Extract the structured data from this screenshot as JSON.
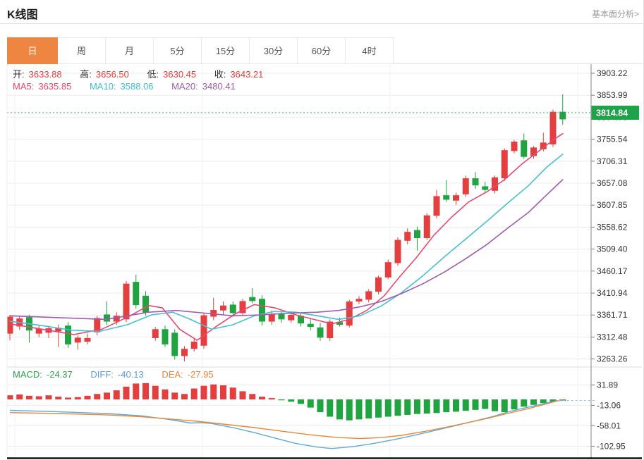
{
  "header": {
    "title": "K线图",
    "link": "基本面分析>"
  },
  "tabs": {
    "items": [
      "日",
      "周",
      "月",
      "5分",
      "15分",
      "30分",
      "60分",
      "4时"
    ],
    "active_index": 0
  },
  "info": {
    "open_label": "开:",
    "open_value": "3633.88",
    "high_label": "高:",
    "high_value": "3656.50",
    "low_label": "低:",
    "low_value": "3630.45",
    "close_label": "收:",
    "close_value": "3643.21",
    "ma5_label": "MA5:",
    "ma5_value": "3635.85",
    "ma10_label": "MA10:",
    "ma10_value": "3588.06",
    "ma20_label": "MA20:",
    "ma20_value": "3480.41"
  },
  "macd_info": {
    "macd_label": "MACD:",
    "macd_value": "-24.37",
    "diff_label": "DIFF:",
    "diff_value": "-40.13",
    "dea_label": "DEA:",
    "dea_value": "-27.95"
  },
  "colors": {
    "up": "#e43e3e",
    "down": "#1fa440",
    "accent_tab": "#ee8540",
    "ma5": "#e8486e",
    "ma10": "#45bfd6",
    "ma20": "#a05ab0",
    "diff_line": "#5aabdc",
    "dea_line": "#ef8632",
    "badge_bg": "#1fa24a",
    "dotted_line": "#2aa84c",
    "grid": "#ececec",
    "axis": "#9a9a9a"
  },
  "chart_data": [
    {
      "type": "candlestick",
      "panel": "main",
      "title": "K线图 日K",
      "y_ticks": [
        "3903.22",
        "3853.99",
        "3804.76",
        "3755.54",
        "3706.31",
        "3657.08",
        "3607.85",
        "3558.62",
        "3509.40",
        "3460.17",
        "3410.94",
        "3361.71",
        "3312.48",
        "3263.26"
      ],
      "y_range": [
        3263.26,
        3903.22
      ],
      "grid": true,
      "legend_position": "top-left-overlay",
      "current_price": 3814.84,
      "current_price_label": "3814.84",
      "candles_ohlc": [
        [
          3320,
          3362,
          3305,
          3358
        ],
        [
          3336,
          3360,
          3328,
          3354
        ],
        [
          3357,
          3362,
          3300,
          3327
        ],
        [
          3320,
          3340,
          3312,
          3331
        ],
        [
          3322,
          3338,
          3310,
          3332
        ],
        [
          3325,
          3340,
          3290,
          3333
        ],
        [
          3338,
          3346,
          3288,
          3296
        ],
        [
          3300,
          3316,
          3284,
          3311
        ],
        [
          3302,
          3320,
          3296,
          3310
        ],
        [
          3323,
          3360,
          3316,
          3355
        ],
        [
          3363,
          3392,
          3340,
          3347
        ],
        [
          3347,
          3368,
          3340,
          3360
        ],
        [
          3352,
          3438,
          3346,
          3432
        ],
        [
          3436,
          3452,
          3376,
          3384
        ],
        [
          3405,
          3415,
          3360,
          3367
        ],
        [
          3310,
          3335,
          3304,
          3330
        ],
        [
          3330,
          3338,
          3290,
          3296
        ],
        [
          3322,
          3330,
          3262,
          3270
        ],
        [
          3270,
          3292,
          3258,
          3286
        ],
        [
          3286,
          3308,
          3280,
          3302
        ],
        [
          3293,
          3366,
          3286,
          3361
        ],
        [
          3358,
          3400,
          3350,
          3373
        ],
        [
          3372,
          3392,
          3362,
          3383
        ],
        [
          3385,
          3392,
          3358,
          3366
        ],
        [
          3366,
          3398,
          3360,
          3393
        ],
        [
          3402,
          3422,
          3388,
          3393
        ],
        [
          3398,
          3406,
          3338,
          3347
        ],
        [
          3347,
          3372,
          3340,
          3364
        ],
        [
          3364,
          3370,
          3344,
          3352
        ],
        [
          3350,
          3368,
          3344,
          3362
        ],
        [
          3360,
          3366,
          3336,
          3343
        ],
        [
          3342,
          3354,
          3328,
          3335
        ],
        [
          3334,
          3344,
          3304,
          3311
        ],
        [
          3310,
          3352,
          3304,
          3347
        ],
        [
          3346,
          3356,
          3336,
          3340
        ],
        [
          3338,
          3396,
          3334,
          3392
        ],
        [
          3392,
          3404,
          3386,
          3398
        ],
        [
          3396,
          3420,
          3390,
          3415
        ],
        [
          3414,
          3450,
          3408,
          3446
        ],
        [
          3446,
          3486,
          3442,
          3480
        ],
        [
          3478,
          3536,
          3472,
          3530
        ],
        [
          3528,
          3556,
          3520,
          3548
        ],
        [
          3552,
          3560,
          3506,
          3534
        ],
        [
          3534,
          3590,
          3530,
          3585
        ],
        [
          3584,
          3642,
          3578,
          3628
        ],
        [
          3630,
          3664,
          3615,
          3620
        ],
        [
          3618,
          3636,
          3608,
          3630
        ],
        [
          3632,
          3674,
          3626,
          3668
        ],
        [
          3668,
          3682,
          3644,
          3652
        ],
        [
          3650,
          3660,
          3634,
          3642
        ],
        [
          3640,
          3674,
          3634,
          3670
        ],
        [
          3668,
          3735,
          3662,
          3731
        ],
        [
          3729,
          3754,
          3724,
          3750
        ],
        [
          3753,
          3768,
          3712,
          3716
        ],
        [
          3718,
          3740,
          3712,
          3737
        ],
        [
          3733,
          3770,
          3728,
          3748
        ],
        [
          3744,
          3822,
          3738,
          3817
        ],
        [
          3817,
          3856,
          3788,
          3800
        ]
      ],
      "ma_lines": [
        {
          "name": "MA5",
          "color": "#e8486e",
          "points": [
            [
              0,
              3342
            ],
            [
              3.3,
              3330
            ],
            [
              6.6,
              3318
            ],
            [
              9.5,
              3330
            ],
            [
              12.4,
              3360
            ],
            [
              14.3,
              3383
            ],
            [
              15.7,
              3378
            ],
            [
              17.5,
              3330
            ],
            [
              19.3,
              3305
            ],
            [
              21.2,
              3335
            ],
            [
              23.3,
              3365
            ],
            [
              25.2,
              3385
            ],
            [
              27.3,
              3378
            ],
            [
              29.5,
              3362
            ],
            [
              31.7,
              3350
            ],
            [
              33.2,
              3342
            ],
            [
              35,
              3352
            ],
            [
              36.8,
              3372
            ],
            [
              38.6,
              3405
            ],
            [
              40.1,
              3445
            ],
            [
              41.9,
              3490
            ],
            [
              43.7,
              3540
            ],
            [
              45.5,
              3580
            ],
            [
              47.3,
              3615
            ],
            [
              49.2,
              3638
            ],
            [
              51,
              3665
            ],
            [
              52.8,
              3700
            ],
            [
              54.6,
              3730
            ],
            [
              56.1,
              3755
            ],
            [
              57,
              3768
            ]
          ]
        },
        {
          "name": "MA10",
          "color": "#45bfd6",
          "points": [
            [
              0,
              3348
            ],
            [
              3.3,
              3338
            ],
            [
              6.3,
              3328
            ],
            [
              9.2,
              3325
            ],
            [
              12.1,
              3340
            ],
            [
              14.6,
              3362
            ],
            [
              16.8,
              3368
            ],
            [
              18.6,
              3352
            ],
            [
              20.8,
              3330
            ],
            [
              23,
              3340
            ],
            [
              25.2,
              3360
            ],
            [
              27.3,
              3370
            ],
            [
              29.5,
              3368
            ],
            [
              31.7,
              3360
            ],
            [
              33.9,
              3352
            ],
            [
              36.1,
              3360
            ],
            [
              38.3,
              3382
            ],
            [
              40.4,
              3412
            ],
            [
              42.6,
              3450
            ],
            [
              44.8,
              3492
            ],
            [
              47,
              3532
            ],
            [
              49.2,
              3572
            ],
            [
              51.3,
              3612
            ],
            [
              53.5,
              3652
            ],
            [
              55.3,
              3692
            ],
            [
              57,
              3722
            ]
          ]
        },
        {
          "name": "MA20",
          "color": "#a05ab0",
          "points": [
            [
              0,
              3360
            ],
            [
              4.8,
              3356
            ],
            [
              9.9,
              3352
            ],
            [
              14.3,
              3368
            ],
            [
              17.2,
              3372
            ],
            [
              20.1,
              3366
            ],
            [
              23,
              3360
            ],
            [
              25.9,
              3362
            ],
            [
              28.8,
              3366
            ],
            [
              31.7,
              3368
            ],
            [
              33.9,
              3372
            ],
            [
              36.1,
              3380
            ],
            [
              38.3,
              3392
            ],
            [
              40.4,
              3410
            ],
            [
              42.6,
              3432
            ],
            [
              44.8,
              3458
            ],
            [
              47,
              3488
            ],
            [
              49.2,
              3520
            ],
            [
              51.3,
              3556
            ],
            [
              53.5,
              3592
            ],
            [
              55.3,
              3630
            ],
            [
              57,
              3665
            ]
          ]
        }
      ]
    },
    {
      "type": "bar",
      "panel": "macd",
      "title": "MACD",
      "y_ticks": [
        "31.89",
        "-13.06",
        "-58.01",
        "-102.95"
      ],
      "y_tick_values": [
        31.89,
        -13.06,
        -58.01,
        -102.95
      ],
      "grid": true,
      "histogram": [
        9,
        11,
        8,
        7,
        9,
        6,
        4,
        5,
        8,
        12,
        15,
        20,
        28,
        35,
        36,
        30,
        22,
        15,
        12,
        24,
        30,
        33,
        31,
        26,
        18,
        12,
        6,
        3,
        -2,
        -5,
        -10,
        -18,
        -28,
        -38,
        -44,
        -46,
        -44,
        -42,
        -40,
        -38,
        -36,
        -34,
        -32,
        -31,
        -30,
        -28,
        -27,
        -25,
        -23,
        -21,
        -26,
        -28,
        -22,
        -16,
        -12,
        -8,
        -5,
        -3
      ],
      "lines": [
        {
          "name": "DIFF",
          "color": "#5aabdc",
          "points": [
            [
              0,
              -24
            ],
            [
              4.8,
              -27
            ],
            [
              9.9,
              -31
            ],
            [
              13.5,
              -36
            ],
            [
              16.4,
              -44
            ],
            [
              18.6,
              -52
            ],
            [
              19.7,
              -51
            ],
            [
              20.8,
              -53
            ],
            [
              23,
              -62
            ],
            [
              25.2,
              -73
            ],
            [
              27.3,
              -85
            ],
            [
              29.5,
              -97
            ],
            [
              31.7,
              -105
            ],
            [
              33.2,
              -108
            ],
            [
              35.3,
              -104
            ],
            [
              37.5,
              -97
            ],
            [
              39.7,
              -88
            ],
            [
              41.9,
              -78
            ],
            [
              44.1,
              -67
            ],
            [
              46.3,
              -56
            ],
            [
              48.4,
              -45
            ],
            [
              49.9,
              -37
            ],
            [
              51.3,
              -28
            ],
            [
              52.8,
              -20
            ],
            [
              54.3,
              -13
            ],
            [
              55.3,
              -8
            ],
            [
              56.4,
              -3
            ],
            [
              57,
              -2
            ]
          ]
        },
        {
          "name": "DEA",
          "color": "#ef8632",
          "points": [
            [
              0,
              -29
            ],
            [
              4.8,
              -31
            ],
            [
              9.9,
              -34
            ],
            [
              13.5,
              -38
            ],
            [
              16.4,
              -43
            ],
            [
              19.3,
              -48
            ],
            [
              22.3,
              -55
            ],
            [
              25.2,
              -62
            ],
            [
              28.1,
              -70
            ],
            [
              31,
              -78
            ],
            [
              33.9,
              -84
            ],
            [
              36.1,
              -86
            ],
            [
              38.3,
              -84
            ],
            [
              40.4,
              -79
            ],
            [
              42.6,
              -71
            ],
            [
              44.8,
              -62
            ],
            [
              47,
              -52
            ],
            [
              49.2,
              -42
            ],
            [
              51.3,
              -31
            ],
            [
              53.5,
              -20
            ],
            [
              55.3,
              -10
            ],
            [
              57,
              0
            ]
          ]
        }
      ],
      "dashed_level": -2.3
    }
  ]
}
